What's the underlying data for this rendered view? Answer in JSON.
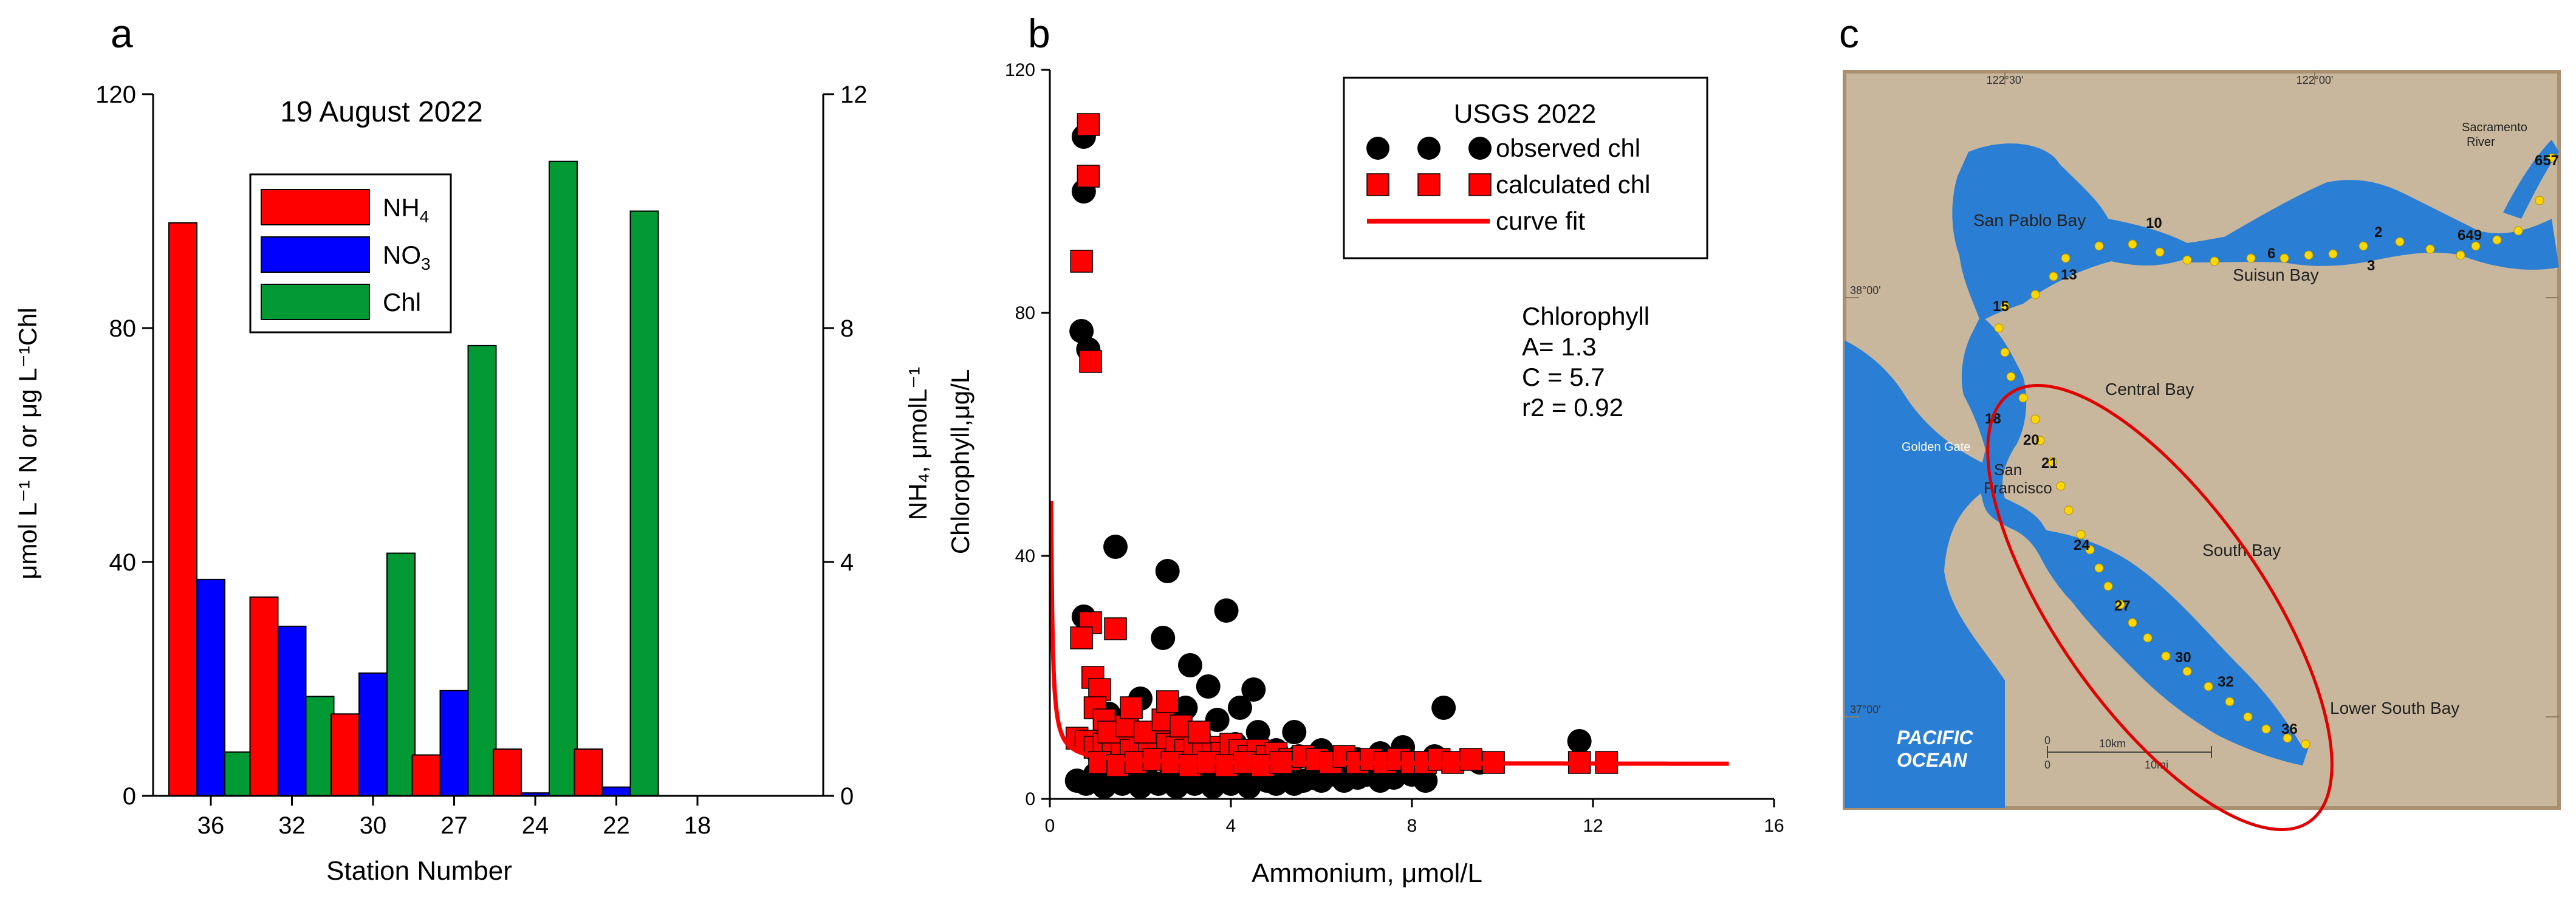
{
  "chart_data": [
    {
      "panel_letter": "a",
      "type": "bar",
      "title": "19 August 2022",
      "categories": [
        "36",
        "32",
        "30",
        "27",
        "24",
        "22",
        "18"
      ],
      "ylabel_left": "μmol L⁻¹ N or μg L⁻¹Chl",
      "ylabel_right": "NH₄, μmolL⁻¹",
      "xlabel": "Station Number",
      "ylim_left": [
        0,
        120
      ],
      "ylim_right": [
        0,
        12
      ],
      "yticks_left": [
        "0",
        "40",
        "80",
        "120"
      ],
      "yticks_right": [
        "0",
        "4",
        "8",
        "12"
      ],
      "legend": [
        {
          "label": "NH",
          "sub": "4",
          "color": "#ff0000"
        },
        {
          "label": "NO",
          "sub": "3",
          "color": "#0000ff"
        },
        {
          "label": "Chl",
          "sub": "",
          "color": "#009933"
        }
      ],
      "series": [
        {
          "name": "NH4",
          "color": "#ff0000",
          "values": [
            98,
            34,
            14,
            7,
            8,
            8,
            0
          ]
        },
        {
          "name": "NO3",
          "color": "#0000ff",
          "values": [
            37,
            29,
            21,
            18,
            0.5,
            1.5,
            0
          ]
        },
        {
          "name": "Chl",
          "color": "#009933",
          "values": [
            7.5,
            17,
            41.5,
            77,
            108.5,
            100,
            0
          ]
        }
      ]
    },
    {
      "panel_letter": "b",
      "type": "scatter",
      "xlabel": "Ammonium, μmol/L",
      "ylabel": "Chlorophyll,μg/L",
      "xlim": [
        0,
        16
      ],
      "ylim": [
        0,
        120
      ],
      "xticks": [
        "0",
        "4",
        "8",
        "12",
        "16"
      ],
      "yticks": [
        "0",
        "40",
        "80",
        "120"
      ],
      "legend": {
        "title": "USGS 2022",
        "entries": [
          {
            "label": "observed chl",
            "marker": "circle",
            "color": "#000000"
          },
          {
            "label": "calculated chl",
            "marker": "square",
            "color": "#ff0000"
          },
          {
            "label": "curve fit",
            "marker": "line",
            "color": "#ff0000"
          }
        ]
      },
      "annotation": [
        "Chlorophyll",
        "A= 1.3",
        "C = 5.7",
        "r2 = 0.92"
      ],
      "observed": [
        [
          0.75,
          109
        ],
        [
          0.75,
          100
        ],
        [
          0.7,
          77
        ],
        [
          0.85,
          74
        ],
        [
          0.75,
          30
        ],
        [
          1.45,
          41.5
        ],
        [
          2.6,
          37.5
        ],
        [
          3.9,
          31
        ],
        [
          2.5,
          26.5
        ],
        [
          3.1,
          22
        ],
        [
          2.0,
          16.5
        ],
        [
          3.5,
          18.5
        ],
        [
          4.2,
          15
        ],
        [
          4.5,
          18
        ],
        [
          5.4,
          11
        ],
        [
          8.7,
          15
        ],
        [
          11.7,
          9.5
        ],
        [
          0.6,
          3
        ],
        [
          0.8,
          2.5
        ],
        [
          1.0,
          4
        ],
        [
          1.2,
          2
        ],
        [
          1.4,
          3
        ],
        [
          1.6,
          2.5
        ],
        [
          1.8,
          3.5
        ],
        [
          2.0,
          2
        ],
        [
          2.2,
          3
        ],
        [
          2.4,
          2.5
        ],
        [
          2.6,
          3
        ],
        [
          2.8,
          2
        ],
        [
          3.0,
          3.5
        ],
        [
          3.2,
          2.5
        ],
        [
          3.4,
          3
        ],
        [
          3.6,
          2
        ],
        [
          3.8,
          3.5
        ],
        [
          4.0,
          2.5
        ],
        [
          4.2,
          3
        ],
        [
          4.4,
          2
        ],
        [
          4.6,
          4
        ],
        [
          4.8,
          3
        ],
        [
          5.0,
          2.5
        ],
        [
          5.2,
          3.5
        ],
        [
          5.4,
          2.5
        ],
        [
          5.6,
          3
        ],
        [
          5.8,
          3.5
        ],
        [
          6.0,
          3
        ],
        [
          6.2,
          4
        ],
        [
          6.5,
          3
        ],
        [
          6.8,
          3.5
        ],
        [
          7.0,
          4
        ],
        [
          7.3,
          3
        ],
        [
          7.6,
          3.5
        ],
        [
          8.0,
          4
        ],
        [
          8.3,
          3
        ],
        [
          1.1,
          7
        ],
        [
          1.5,
          9
        ],
        [
          1.9,
          11
        ],
        [
          2.3,
          8
        ],
        [
          2.7,
          12
        ],
        [
          3.3,
          10
        ],
        [
          3.7,
          13
        ],
        [
          4.1,
          9
        ],
        [
          4.6,
          11
        ],
        [
          5.0,
          8
        ],
        [
          5.5,
          7
        ],
        [
          6.0,
          8
        ],
        [
          6.8,
          6.5
        ],
        [
          7.3,
          7.5
        ],
        [
          7.8,
          8.5
        ],
        [
          8.5,
          7
        ],
        [
          9.5,
          6
        ],
        [
          1.3,
          14
        ],
        [
          1.7,
          13
        ],
        [
          2.9,
          14
        ],
        [
          3.0,
          15
        ],
        [
          4.4,
          7
        ],
        [
          2.1,
          5
        ],
        [
          3.5,
          6
        ],
        [
          4.9,
          5
        ],
        [
          6.4,
          5.5
        ]
      ],
      "calculated": [
        [
          0.85,
          111
        ],
        [
          0.85,
          102.5
        ],
        [
          0.7,
          88.5
        ],
        [
          0.9,
          72
        ],
        [
          0.9,
          29
        ],
        [
          1.45,
          28
        ],
        [
          0.7,
          26.5
        ],
        [
          0.95,
          20
        ],
        [
          1.1,
          18
        ],
        [
          1.0,
          15
        ],
        [
          1.2,
          13
        ],
        [
          0.6,
          10
        ],
        [
          0.8,
          9.5
        ],
        [
          1.0,
          8.5
        ],
        [
          1.2,
          9
        ],
        [
          1.4,
          8
        ],
        [
          1.6,
          9
        ],
        [
          1.8,
          8
        ],
        [
          2.0,
          9
        ],
        [
          2.2,
          8
        ],
        [
          2.4,
          10
        ],
        [
          2.6,
          9
        ],
        [
          2.8,
          8.5
        ],
        [
          3.0,
          8
        ],
        [
          3.2,
          9
        ],
        [
          3.4,
          8
        ],
        [
          3.6,
          8.5
        ],
        [
          3.8,
          7.5
        ],
        [
          4.0,
          9
        ],
        [
          4.2,
          8
        ],
        [
          4.4,
          7
        ],
        [
          4.6,
          8
        ],
        [
          4.8,
          7
        ],
        [
          5.0,
          7.5
        ],
        [
          5.3,
          6.5
        ],
        [
          5.6,
          7
        ],
        [
          5.9,
          6.5
        ],
        [
          6.2,
          6
        ],
        [
          6.5,
          7
        ],
        [
          6.8,
          6
        ],
        [
          7.1,
          6.5
        ],
        [
          7.4,
          6
        ],
        [
          7.7,
          6.5
        ],
        [
          8.0,
          6
        ],
        [
          8.3,
          6
        ],
        [
          8.6,
          6.5
        ],
        [
          8.9,
          6
        ],
        [
          9.3,
          6.5
        ],
        [
          9.8,
          6
        ],
        [
          11.7,
          6
        ],
        [
          12.3,
          6
        ],
        [
          1.1,
          6
        ],
        [
          1.5,
          5.5
        ],
        [
          1.9,
          6
        ],
        [
          2.3,
          6.5
        ],
        [
          2.7,
          6
        ],
        [
          3.1,
          5.5
        ],
        [
          3.5,
          6
        ],
        [
          3.9,
          5.5
        ],
        [
          4.3,
          6
        ],
        [
          4.7,
          5.5
        ],
        [
          5.1,
          6
        ],
        [
          1.3,
          11
        ],
        [
          1.7,
          12
        ],
        [
          2.1,
          11
        ],
        [
          2.5,
          13
        ],
        [
          2.9,
          12
        ],
        [
          3.3,
          11
        ],
        [
          2.6,
          16
        ],
        [
          1.8,
          15
        ]
      ],
      "curve_fit": {
        "A": 1.3,
        "C": 5.7,
        "x_range": [
          0.03,
          15
        ]
      }
    },
    {
      "panel_letter": "c",
      "type": "map",
      "lon_labels": [
        "122°30'",
        "122°00'"
      ],
      "lat_labels": [
        "38°00'",
        "37°00'"
      ],
      "region_labels": [
        "San Pablo Bay",
        "Suisun Bay",
        "Central Bay",
        "Golden Gate",
        "San",
        "Francisco",
        "South Bay",
        "Lower South Bay",
        "Sacramento",
        "River"
      ],
      "ocean_label": [
        "PACIFIC",
        "OCEAN"
      ],
      "scale_labels": [
        "0",
        "10km",
        "0",
        "10mi"
      ],
      "stations": [
        "657",
        "649",
        "2",
        "3",
        "6",
        "10",
        "13",
        "15",
        "18",
        "20",
        "21",
        "24",
        "27",
        "30",
        "32",
        "36"
      ]
    }
  ]
}
